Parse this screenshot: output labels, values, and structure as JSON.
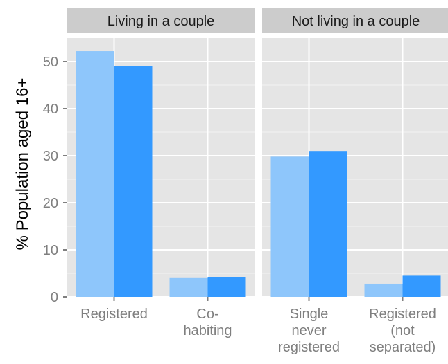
{
  "chart_data": {
    "type": "bar",
    "ylabel": "% Population aged 16+",
    "ylim": [
      0,
      55
    ],
    "yticks": [
      0,
      10,
      20,
      30,
      40,
      50
    ],
    "grid": true,
    "legend": "none",
    "colors": {
      "panel_bg": "#e5e5e5",
      "strip_bg": "#cccccc",
      "grid": "#ffffff",
      "series_1": "#8ec6fb",
      "series_2": "#3399ff"
    },
    "panels": [
      {
        "title": "Living in a couple",
        "categories": [
          {
            "label": [
              "Registered"
            ],
            "values": [
              52.2,
              49.0
            ]
          },
          {
            "label": [
              "Co-",
              "habiting"
            ],
            "values": [
              4.0,
              4.2
            ]
          }
        ]
      },
      {
        "title": "Not living in a couple",
        "categories": [
          {
            "label": [
              "Single",
              "never",
              "registered"
            ],
            "values": [
              29.8,
              31.0
            ]
          },
          {
            "label": [
              "Registered",
              "(not",
              "separated)"
            ],
            "values": [
              2.8,
              4.5
            ]
          }
        ]
      }
    ]
  }
}
